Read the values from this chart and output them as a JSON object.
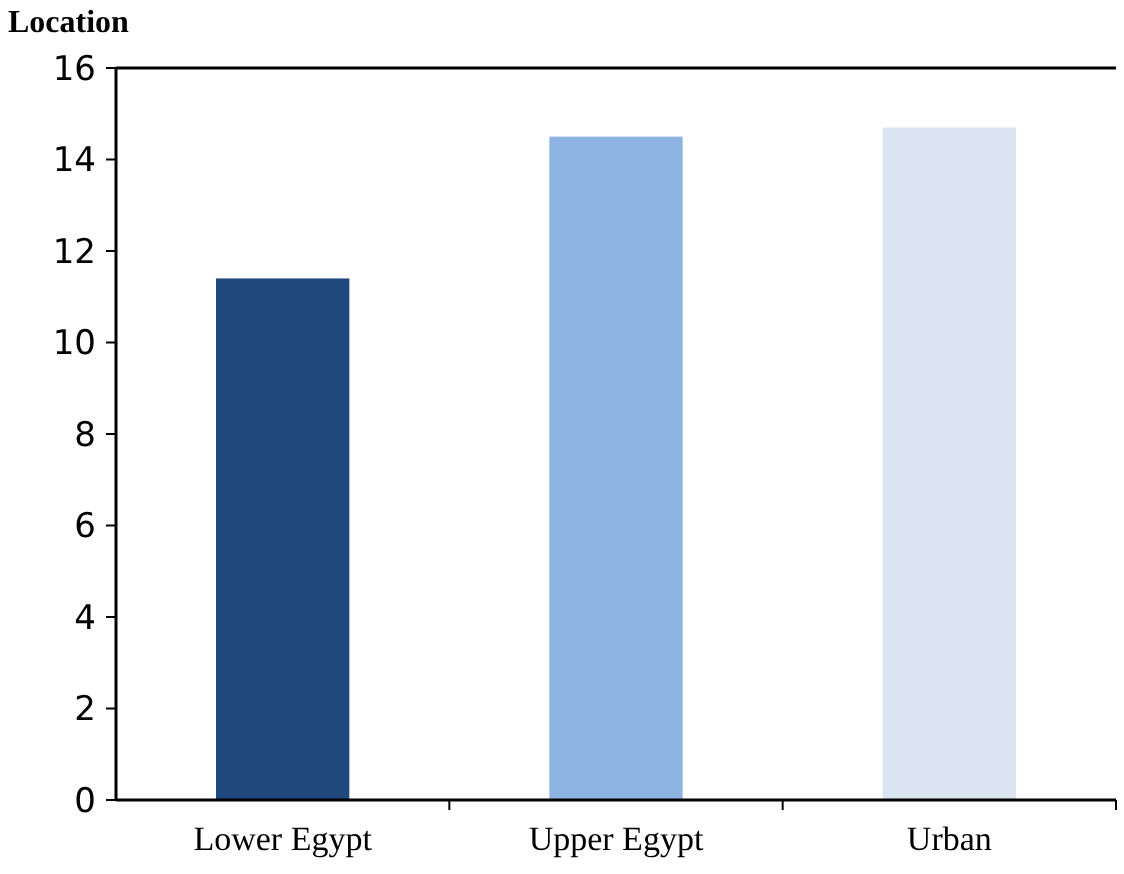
{
  "chart_data": {
    "type": "bar",
    "title": "Location",
    "categories": [
      "Lower Egypt",
      "Upper Egypt",
      "Urban"
    ],
    "values": [
      11.4,
      14.5,
      14.7
    ],
    "colors": [
      "#1f497d",
      "#8db3e2",
      "#dbe5f1"
    ],
    "ylim": [
      0,
      16
    ],
    "yticks": [
      0,
      2,
      4,
      6,
      8,
      10,
      12,
      14,
      16
    ],
    "grid": false
  }
}
